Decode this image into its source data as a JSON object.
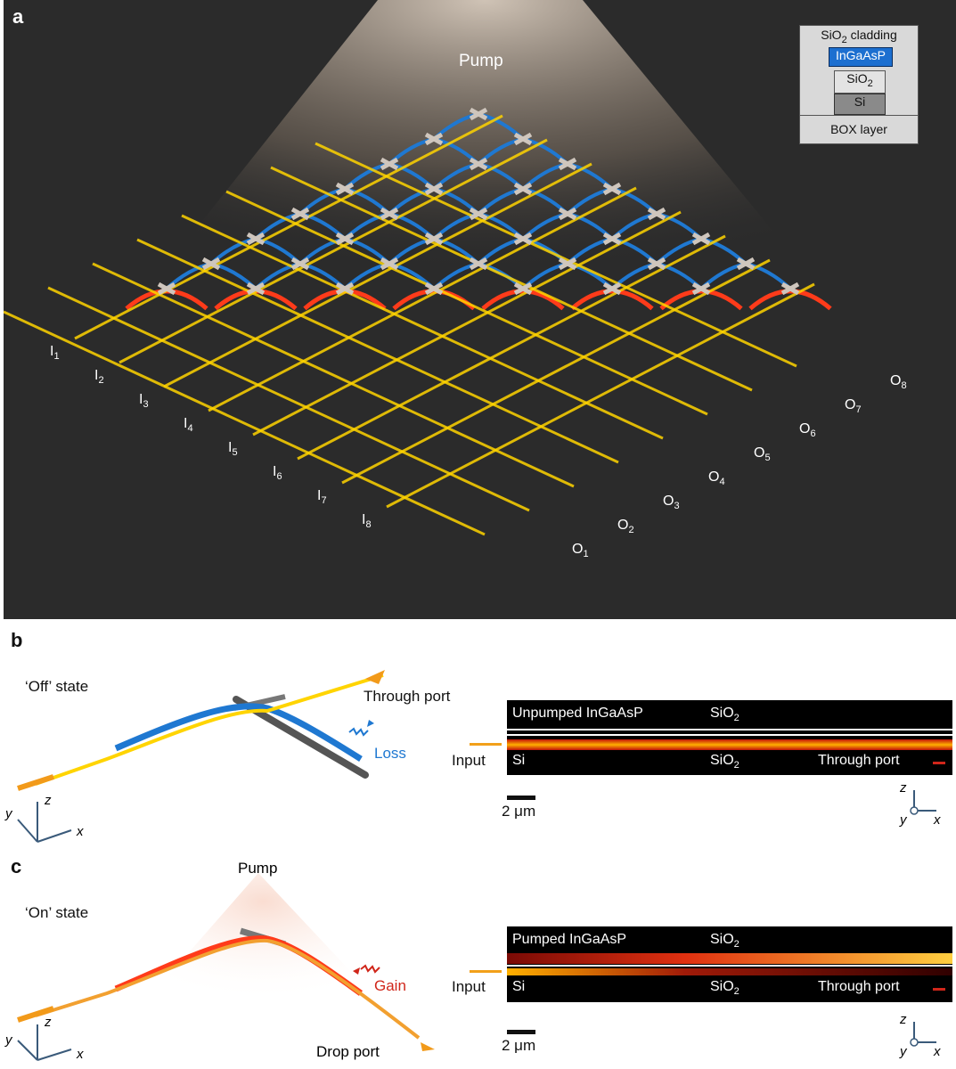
{
  "panel_a": {
    "letter": "a",
    "pump_label": "Pump",
    "inputs": [
      "I1",
      "I2",
      "I3",
      "I4",
      "I5",
      "I6",
      "I7",
      "I8"
    ],
    "outputs": [
      "O1",
      "O2",
      "O3",
      "O4",
      "O5",
      "O6",
      "O7",
      "O8"
    ],
    "inset": {
      "cladding": "SiO2 cladding",
      "ingaasp": "InGaAsP",
      "sio2": "SiO2",
      "si": "Si",
      "box": "BOX layer"
    },
    "colors": {
      "unpumped": "#1f78d1",
      "gain": "#ff3b1a",
      "signal": "#ffd400",
      "background": "#2b2b2b"
    }
  },
  "panel_b": {
    "letter": "b",
    "state": "‘Off’ state",
    "through_port": "Through port",
    "loss": "Loss",
    "axes": {
      "x": "x",
      "y": "y",
      "z": "z"
    },
    "sim": {
      "top_label": "Unpumped InGaAsP",
      "sio2_top": "SiO2",
      "si": "Si",
      "sio2_bottom": "SiO2",
      "input": "Input",
      "output": "Through port",
      "scalebar": "2 μm"
    }
  },
  "panel_c": {
    "letter": "c",
    "state": "‘On’ state",
    "pump_label": "Pump",
    "gain": "Gain",
    "drop_port": "Drop port",
    "axes": {
      "x": "x",
      "y": "y",
      "z": "z"
    },
    "sim": {
      "top_label": "Pumped InGaAsP",
      "sio2_top": "SiO2",
      "si": "Si",
      "sio2_bottom": "SiO2",
      "input": "Input",
      "output": "Through port",
      "scalebar": "2 μm"
    }
  }
}
